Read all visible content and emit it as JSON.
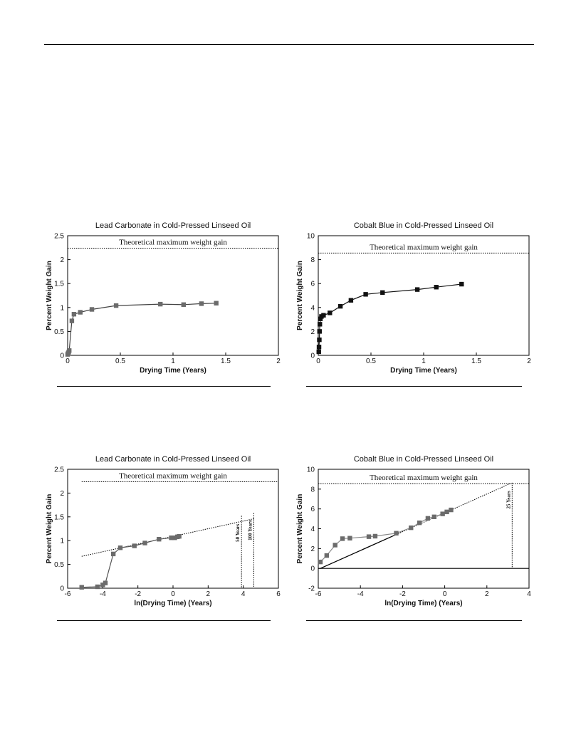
{
  "chart_data": [
    {
      "type": "line",
      "title": "Lead Carbonate in Cold-Pressed Linseed Oil",
      "xlabel": "Drying Time (Years)",
      "ylabel": "Percent Weight Gain",
      "xlim": [
        0,
        2
      ],
      "ylim": [
        0,
        2.5
      ],
      "xticks": [
        0,
        0.5,
        1,
        1.5,
        2
      ],
      "yticks": [
        0,
        0.5,
        1,
        1.5,
        2,
        2.5
      ],
      "series": [
        {
          "points": [
            [
              0.0,
              0.02
            ],
            [
              0.005,
              0.04
            ],
            [
              0.01,
              0.07
            ],
            [
              0.015,
              0.1
            ],
            [
              0.04,
              0.72
            ],
            [
              0.06,
              0.86
            ],
            [
              0.12,
              0.9
            ],
            [
              0.23,
              0.96
            ],
            [
              0.46,
              1.04
            ],
            [
              0.88,
              1.07
            ],
            [
              1.1,
              1.06
            ],
            [
              1.27,
              1.08
            ],
            [
              1.41,
              1.09
            ]
          ],
          "marker_color": "#6b6b6b",
          "line_color": "#444444"
        }
      ],
      "hlines": [
        {
          "y": 2.24,
          "label": "Theoretical maximum weight gain"
        }
      ],
      "grid": false
    },
    {
      "type": "line",
      "title": "Cobalt Blue in Cold-Pressed Linseed Oil",
      "xlabel": "Drying Time (Years)",
      "ylabel": "Percent Weight Gain",
      "xlim": [
        0,
        2
      ],
      "ylim": [
        0,
        10
      ],
      "xticks": [
        0,
        0.5,
        1,
        1.5,
        2
      ],
      "yticks": [
        0,
        2,
        4,
        6,
        8,
        10
      ],
      "series": [
        {
          "points": [
            [
              0.005,
              0.3
            ],
            [
              0.007,
              0.7
            ],
            [
              0.01,
              1.3
            ],
            [
              0.012,
              2.0
            ],
            [
              0.015,
              2.6
            ],
            [
              0.02,
              3.05
            ],
            [
              0.03,
              3.25
            ],
            [
              0.05,
              3.35
            ],
            [
              0.11,
              3.55
            ],
            [
              0.21,
              4.1
            ],
            [
              0.31,
              4.6
            ],
            [
              0.45,
              5.1
            ],
            [
              0.61,
              5.25
            ],
            [
              0.94,
              5.5
            ],
            [
              1.12,
              5.7
            ],
            [
              1.36,
              5.95
            ]
          ],
          "marker_color": "#111111",
          "line_color": "#111111"
        }
      ],
      "hlines": [
        {
          "y": 8.55,
          "label": "Theoretical maximum weight gain"
        }
      ],
      "grid": false
    },
    {
      "type": "scatter",
      "title": "Lead Carbonate in Cold-Pressed Linseed Oil",
      "xlabel": "ln(Drying Time) (Years)",
      "ylabel": "Percent Weight Gain",
      "xlim": [
        -6,
        6
      ],
      "ylim": [
        0,
        2.5
      ],
      "xticks": [
        -6,
        -4,
        -2,
        0,
        2,
        4,
        6
      ],
      "yticks": [
        0,
        0.5,
        1,
        1.5,
        2,
        2.5
      ],
      "series": [
        {
          "points": [
            [
              -5.2,
              0.02
            ],
            [
              -4.3,
              0.03
            ],
            [
              -4.0,
              0.07
            ],
            [
              -3.85,
              0.11
            ],
            [
              -3.4,
              0.72
            ],
            [
              -3.0,
              0.85
            ],
            [
              -2.2,
              0.89
            ],
            [
              -1.6,
              0.95
            ],
            [
              -0.8,
              1.03
            ],
            [
              -0.1,
              1.06
            ],
            [
              0.1,
              1.06
            ],
            [
              0.25,
              1.08
            ],
            [
              0.35,
              1.09
            ]
          ],
          "marker_color": "#6b6b6b",
          "line_color": "#555555"
        }
      ],
      "trendline": [
        [
          -5.2,
          0.67
        ],
        [
          4.6,
          1.46
        ]
      ],
      "hlines": [
        {
          "y": 2.24,
          "label": "Theoretical maximum weight gain"
        }
      ],
      "vlines": [
        {
          "x": 3.9,
          "label": "50 Years"
        },
        {
          "x": 4.6,
          "label": "100 Years"
        }
      ],
      "grid": false
    },
    {
      "type": "scatter",
      "title": "Cobalt Blue in Cold-Pressed Linseed Oil",
      "xlabel": "ln(Drying Time) (Years)",
      "ylabel": "Percent Weight Gain",
      "xlim": [
        -6,
        4
      ],
      "ylim": [
        -2,
        10
      ],
      "xticks": [
        -6,
        -4,
        -2,
        0,
        2,
        4
      ],
      "yticks": [
        -2,
        0,
        2,
        4,
        6,
        8,
        10
      ],
      "series": [
        {
          "points": [
            [
              -5.9,
              0.65
            ],
            [
              -5.6,
              1.3
            ],
            [
              -5.2,
              2.35
            ],
            [
              -4.85,
              3.0
            ],
            [
              -4.5,
              3.05
            ],
            [
              -3.6,
              3.2
            ],
            [
              -3.3,
              3.25
            ],
            [
              -2.3,
              3.55
            ],
            [
              -1.6,
              4.1
            ],
            [
              -1.2,
              4.6
            ],
            [
              -0.8,
              5.05
            ],
            [
              -0.5,
              5.2
            ],
            [
              -0.1,
              5.5
            ],
            [
              0.1,
              5.7
            ],
            [
              0.3,
              5.9
            ]
          ],
          "marker_color": "#6b6b6b",
          "line_color": "#888888"
        }
      ],
      "trendline": [
        [
          -5.9,
          0.0
        ],
        [
          3.1,
          8.55
        ]
      ],
      "hlines": [
        {
          "y": 8.55,
          "label": "Theoretical maximum weight gain"
        }
      ],
      "vlines": [
        {
          "x": 3.2,
          "label": "25 Years"
        }
      ],
      "zero_line": true,
      "grid": false
    }
  ]
}
